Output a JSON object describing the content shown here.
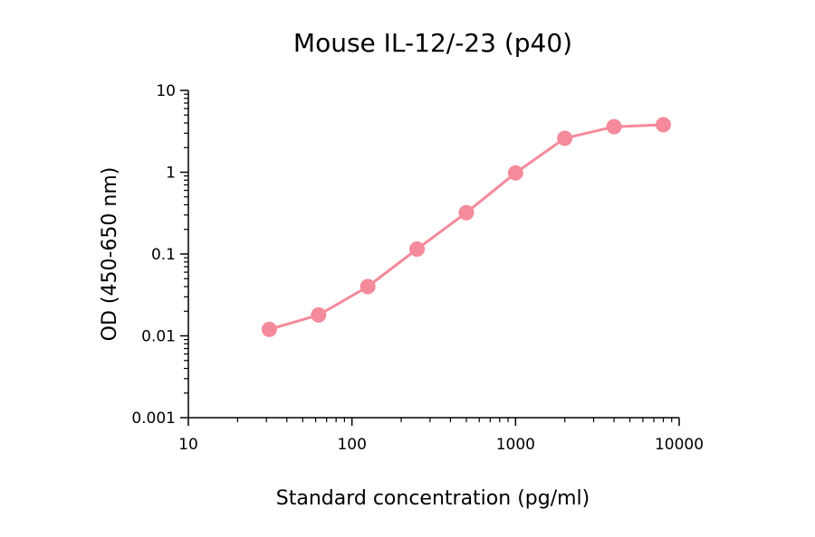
{
  "chart_data": {
    "type": "line",
    "title": "Mouse IL-12/-23 (p40)",
    "xlabel": "Standard concentration (pg/ml)",
    "ylabel": "OD (450-650 nm)",
    "xscale": "log",
    "yscale": "log",
    "xlim": [
      10,
      10000
    ],
    "ylim": [
      0.001,
      10
    ],
    "x_ticks": [
      "10",
      "100",
      "1000",
      "10000"
    ],
    "y_ticks": [
      "0.001",
      "0.01",
      "0.1",
      "1",
      "10"
    ],
    "grid": false,
    "legend": "none",
    "series": [
      {
        "color": "#F48A9A",
        "marker": "circle",
        "x": [
          31.25,
          62.5,
          125,
          250,
          500,
          1000,
          2000,
          4000,
          8000
        ],
        "y": [
          0.012,
          0.018,
          0.04,
          0.115,
          0.32,
          0.98,
          2.6,
          3.6,
          3.8
        ]
      }
    ]
  }
}
